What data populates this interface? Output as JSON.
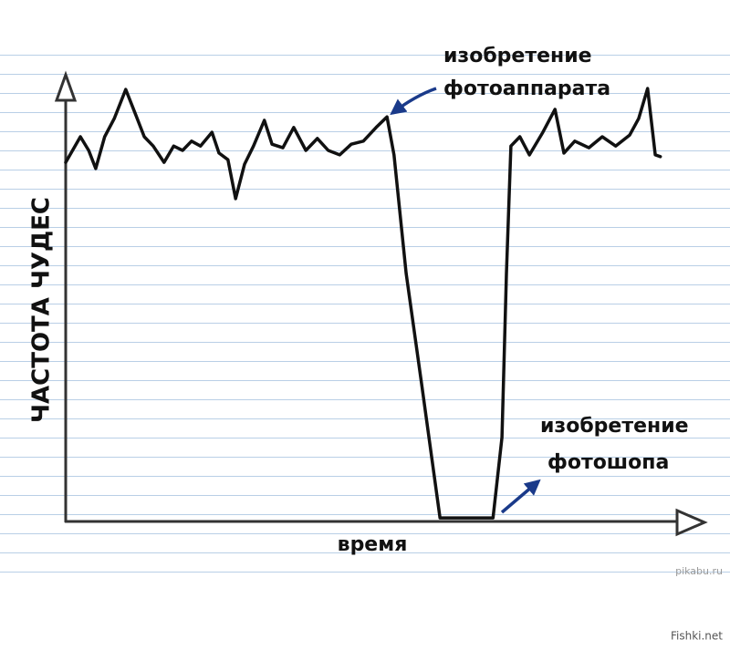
{
  "chart_data": {
    "type": "line",
    "x_label": "время",
    "y_label": "ЧАСТОТА ЧУДЕС",
    "x": [
      0,
      2.3,
      3.6,
      4.7,
      6.1,
      7.6,
      9.4,
      10.9,
      12.3,
      13.7,
      15.4,
      16.9,
      18.3,
      19.7,
      21.1,
      22.9,
      24,
      25.4,
      26.6,
      28,
      29.4,
      31.1,
      32.3,
      34,
      35.7,
      37.6,
      39.4,
      41.1,
      42.9,
      44.7,
      46.6,
      48.6,
      50.3,
      51.4,
      53.3,
      55.7,
      58.6,
      66.9,
      68.3,
      69,
      69.7,
      71.1,
      72.6,
      74.7,
      76.6,
      78,
      79.7,
      81.9,
      84,
      86.1,
      88.3,
      89.7,
      91.1,
      92.3,
      93.1
    ],
    "values": [
      80.8,
      86.6,
      83.5,
      79.4,
      86.6,
      90.7,
      97.3,
      91.8,
      86.6,
      84.5,
      80.8,
      84.5,
      83.5,
      85.6,
      84.5,
      87.6,
      82.9,
      81.4,
      72.6,
      80.4,
      84.5,
      90.3,
      84.9,
      84.1,
      88.7,
      83.5,
      86.2,
      83.5,
      82.5,
      84.9,
      85.6,
      88.7,
      91.1,
      82.5,
      55.7,
      30.9,
      0.4,
      0.4,
      18.6,
      55.7,
      84.5,
      86.6,
      82.5,
      87.6,
      92.8,
      82.9,
      85.6,
      84.1,
      86.6,
      84.5,
      87,
      90.7,
      97.5,
      82.5,
      82.1
    ],
    "color": "#111111",
    "xlim": [
      0,
      100
    ],
    "ylim": [
      0,
      100
    ],
    "annotations": [
      {
        "lines": [
          "изобретение",
          "фотоаппарата"
        ],
        "color": "#1a3a8a"
      },
      {
        "lines": [
          "изобретение",
          "фотошопа"
        ],
        "color": "#1a3a8a"
      }
    ]
  },
  "watermarks": [
    "pikabu.ru",
    "Fishki.net"
  ]
}
